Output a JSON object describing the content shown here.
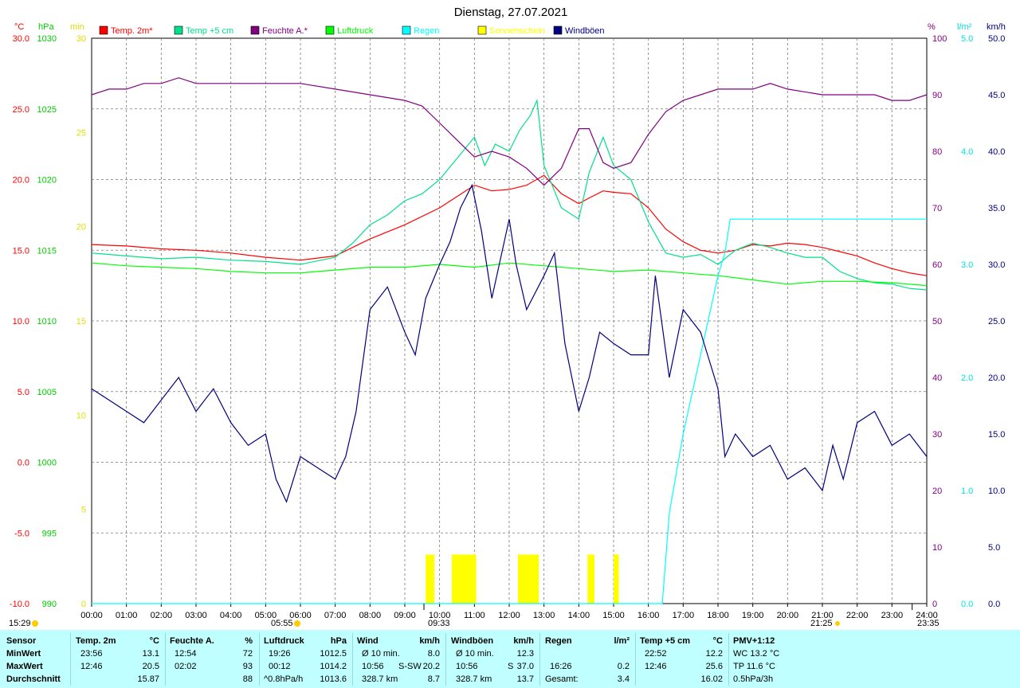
{
  "title": "Dienstag, 27.07.2021",
  "axis_units": {
    "temp": "°C",
    "pressure": "hPa",
    "sun": "min",
    "humidity": "%",
    "rain": "l/m²",
    "wind": "km/h"
  },
  "legend": [
    {
      "label": "Temp. 2m*",
      "color": "#ff0000"
    },
    {
      "label": "Temp +5 cm",
      "color": "#00e08a"
    },
    {
      "label": "Feuchte A.*",
      "color": "#800080"
    },
    {
      "label": "Luftdruck",
      "color": "#00ff00"
    },
    {
      "label": "Regen",
      "color": "#00ffff"
    },
    {
      "label": "Sonnenschein",
      "color": "#ffff00"
    },
    {
      "label": "Windböen",
      "color": "#000080"
    }
  ],
  "ticks": {
    "temp": [
      "30.0",
      "25.0",
      "20.0",
      "15.0",
      "10.0",
      "5.0",
      "0.0",
      "-5.0",
      "-10.0"
    ],
    "pressure": [
      "1030",
      "1025",
      "1020",
      "1015",
      "1010",
      "1005",
      "1000",
      "995",
      "990"
    ],
    "sun": [
      "30",
      "25",
      "20",
      "15",
      "10",
      "5",
      "0"
    ],
    "humidity": [
      "100",
      "90",
      "80",
      "70",
      "60",
      "50",
      "40",
      "30",
      "20",
      "10",
      "0"
    ],
    "rain": [
      "5.0",
      "4.0",
      "3.0",
      "2.0",
      "1.0",
      "0.0"
    ],
    "wind": [
      "50.0",
      "45.0",
      "40.0",
      "35.0",
      "30.0",
      "25.0",
      "20.0",
      "15.0",
      "10.0",
      "5.0",
      "0.0"
    ],
    "time": [
      "00:00",
      "01:00",
      "02:00",
      "03:00",
      "04:00",
      "05:00",
      "06:00",
      "07:00",
      "08:00",
      "09:00",
      "10:00",
      "11:00",
      "12:00",
      "13:00",
      "14:00",
      "15:00",
      "16:00",
      "17:00",
      "18:00",
      "19:00",
      "20:00",
      "21:00",
      "22:00",
      "23:00",
      "24:00"
    ]
  },
  "markers": {
    "current_time": "15:29",
    "sunrise": "05:55",
    "sunset": "21:25",
    "rain_start": "09:33",
    "end_time": "23:35"
  },
  "chart_data": {
    "type": "line",
    "title": "Dienstag, 27.07.2021",
    "x_range": [
      "00:00",
      "24:00"
    ],
    "axes": {
      "temp_ylim": [
        -10,
        30
      ],
      "pressure_ylim": [
        990,
        1030
      ],
      "sun_ylim": [
        0,
        30
      ],
      "humidity_ylim": [
        0,
        100
      ],
      "rain_ylim": [
        0,
        5
      ],
      "wind_ylim": [
        0,
        50
      ]
    },
    "grid": true,
    "legend_position": "top",
    "series": [
      {
        "name": "Temp. 2m*",
        "unit": "°C",
        "axis": "temp",
        "color": "#ff0000",
        "x": [
          0,
          1,
          2,
          3,
          4,
          5,
          6,
          7,
          8,
          9,
          10,
          11,
          11.5,
          12,
          12.5,
          13,
          13.5,
          14,
          14.3,
          14.7,
          15,
          15.5,
          16,
          16.5,
          17,
          17.5,
          18,
          18.5,
          19,
          19.5,
          20,
          20.5,
          21,
          21.5,
          22,
          22.5,
          23,
          23.5,
          24
        ],
        "y": [
          15.4,
          15.3,
          15.1,
          15.0,
          14.8,
          14.5,
          14.3,
          14.6,
          15.8,
          16.8,
          18.0,
          19.6,
          19.2,
          19.3,
          19.6,
          20.3,
          19.0,
          18.3,
          18.7,
          19.2,
          19.1,
          19.0,
          18.0,
          16.5,
          15.6,
          15.0,
          14.8,
          15.0,
          15.4,
          15.3,
          15.5,
          15.4,
          15.2,
          14.9,
          14.6,
          14.1,
          13.7,
          13.4,
          13.2
        ]
      },
      {
        "name": "Temp +5 cm",
        "unit": "°C",
        "axis": "temp",
        "color": "#00e08a",
        "x": [
          0,
          1,
          2,
          3,
          4,
          5,
          6,
          7,
          7.5,
          8,
          8.5,
          9,
          9.5,
          10,
          10.5,
          11,
          11.3,
          11.6,
          12,
          12.3,
          12.6,
          12.8,
          13,
          13.5,
          14,
          14.3,
          14.7,
          15,
          15.5,
          16,
          16.5,
          17,
          17.5,
          18,
          18.5,
          19,
          19.5,
          20,
          20.5,
          21,
          21.5,
          22,
          22.5,
          23,
          23.5,
          24
        ],
        "y": [
          14.8,
          14.6,
          14.4,
          14.5,
          14.3,
          14.2,
          14.0,
          14.5,
          15.5,
          16.8,
          17.5,
          18.5,
          19.0,
          20.0,
          21.5,
          23.0,
          21.0,
          22.5,
          22.0,
          23.5,
          24.5,
          25.6,
          21.0,
          18.0,
          17.2,
          20.5,
          23.0,
          21.0,
          20.0,
          17.0,
          14.8,
          14.5,
          14.7,
          14.0,
          15.0,
          15.5,
          15.2,
          14.8,
          14.5,
          14.5,
          13.5,
          13.0,
          12.7,
          12.6,
          12.3,
          12.2
        ]
      },
      {
        "name": "Feuchte A.*",
        "unit": "%",
        "axis": "humidity",
        "color": "#800080",
        "x": [
          0,
          0.5,
          1,
          1.5,
          2,
          2.5,
          3,
          4,
          5,
          6,
          7,
          8,
          9,
          9.5,
          10,
          10.5,
          11,
          11.5,
          12,
          12.5,
          13,
          13.5,
          14,
          14.3,
          14.7,
          15,
          15.5,
          16,
          16.5,
          17,
          17.5,
          18,
          18.5,
          19,
          19.5,
          20,
          21,
          22,
          22.5,
          23,
          23.5,
          24
        ],
        "y": [
          90,
          91,
          91,
          92,
          92,
          93,
          92,
          92,
          92,
          92,
          91,
          90,
          89,
          88,
          85,
          82,
          79,
          80,
          79,
          77,
          74,
          77,
          84,
          84,
          78,
          77,
          78,
          83,
          87,
          89,
          90,
          91,
          91,
          91,
          92,
          91,
          90,
          90,
          90,
          89,
          89,
          90
        ]
      },
      {
        "name": "Luftdruck",
        "unit": "hPa",
        "axis": "pressure",
        "color": "#00ff00",
        "x": [
          0,
          1,
          2,
          3,
          4,
          5,
          6,
          7,
          8,
          9,
          10,
          11,
          12,
          13,
          14,
          15,
          16,
          17,
          18,
          19,
          20,
          21,
          22,
          23,
          24
        ],
        "y": [
          1014.1,
          1013.9,
          1013.8,
          1013.7,
          1013.5,
          1013.4,
          1013.4,
          1013.6,
          1013.8,
          1013.8,
          1014.0,
          1013.8,
          1014.1,
          1013.9,
          1013.7,
          1013.5,
          1013.6,
          1013.4,
          1013.2,
          1012.9,
          1012.6,
          1012.8,
          1012.8,
          1012.7,
          1012.5
        ]
      },
      {
        "name": "Regen",
        "unit": "l/m²",
        "axis": "rain",
        "color": "#00ffff",
        "x": [
          0,
          16.4,
          16.6,
          17.0,
          17.5,
          18.0,
          18.2,
          18.35,
          19,
          20,
          21,
          22,
          23,
          24
        ],
        "y": [
          0,
          0,
          0.8,
          1.5,
          2.2,
          2.9,
          3.1,
          3.4,
          3.4,
          3.4,
          3.4,
          3.4,
          3.4,
          3.4
        ]
      },
      {
        "name": "Sonnenschein",
        "unit": "min",
        "axis": "sun",
        "color": "#ffff00",
        "intervals": [
          [
            9.6,
            9.85
          ],
          [
            10.35,
            11.05
          ],
          [
            12.25,
            12.85
          ],
          [
            14.25,
            14.45
          ],
          [
            15.0,
            15.15
          ]
        ],
        "value": 2.6
      },
      {
        "name": "Windböen",
        "unit": "km/h",
        "axis": "wind",
        "color": "#000080",
        "x": [
          0,
          0.5,
          1,
          1.5,
          2,
          2.5,
          3,
          3.5,
          4,
          4.5,
          5,
          5.3,
          5.6,
          6,
          6.5,
          7,
          7.3,
          7.6,
          8,
          8.5,
          9,
          9.3,
          9.6,
          10,
          10.3,
          10.6,
          10.93,
          11.2,
          11.5,
          12,
          12.2,
          12.5,
          13,
          13.3,
          13.6,
          14,
          14.3,
          14.6,
          15,
          15.5,
          16,
          16.2,
          16.6,
          17,
          17.5,
          18,
          18.2,
          18.5,
          19,
          19.5,
          20,
          20.5,
          21,
          21.3,
          21.6,
          22,
          22.5,
          23,
          23.5,
          24
        ],
        "y": [
          19,
          18,
          17,
          16,
          18,
          20,
          17,
          19,
          16,
          14,
          15,
          11,
          9,
          13,
          12,
          11,
          13,
          17,
          26,
          28,
          24,
          22,
          27,
          30,
          32,
          35,
          37,
          33,
          27,
          34,
          30,
          26,
          29,
          31,
          23,
          17,
          20,
          24,
          23,
          22,
          22,
          29,
          20,
          26,
          24,
          19,
          13,
          15,
          13,
          14,
          11,
          12,
          10,
          14,
          11,
          16,
          17,
          14,
          15,
          13
        ]
      }
    ]
  },
  "stats": {
    "header": {
      "sensor": "Sensor",
      "temp": "Temp. 2m",
      "temp_u": "°C",
      "feuchte": "Feuchte A.",
      "feuchte_u": "%",
      "luft": "Luftdruck",
      "luft_u": "hPa",
      "wind": "Wind",
      "wind_u": "km/h",
      "boen": "Windböen",
      "boen_u": "km/h",
      "regen": "Regen",
      "regen_u": "l/m²",
      "temp5": "Temp +5 cm",
      "temp5_u": "°C",
      "pmv": "PMV+1:12"
    },
    "rows": [
      {
        "label": "MinWert",
        "temp_t": "23:56",
        "temp_v": "13.1",
        "feuchte_t": "12:54",
        "feuchte_v": "72",
        "luft_t": "19:26",
        "luft_v": "1012.5",
        "wind_t": "Ø 10 min.",
        "wind_v": "8.0",
        "boen_t": "Ø 10 min.",
        "boen_v": "12.3",
        "regen_t": "",
        "regen_v": "",
        "temp5_t": "22:52",
        "temp5_v": "12.2",
        "pmv": "WC 13.2 °C"
      },
      {
        "label": "MaxWert",
        "temp_t": "12:46",
        "temp_v": "20.5",
        "feuchte_t": "02:02",
        "feuchte_v": "93",
        "luft_t": "00:12",
        "luft_v": "1014.2",
        "wind_t": "10:56",
        "wind_d": "S-SW",
        "wind_v": "20.2",
        "boen_t": "10:56",
        "boen_d": "S",
        "boen_v": "37.0",
        "regen_t": "16:26",
        "regen_v": "0.2",
        "temp5_t": "12:46",
        "temp5_v": "25.6",
        "pmv": "TP 11.6 °C"
      },
      {
        "label": "Durchschnitt",
        "temp_t": "",
        "temp_v": "15.87",
        "feuchte_t": "",
        "feuchte_v": "88",
        "luft_t": "^0.8hPa/h",
        "luft_v": "1013.6",
        "wind_t": "328.7 km",
        "wind_v": "8.7",
        "boen_t": "328.7 km",
        "boen_v": "13.7",
        "regen_t": "Gesamt:",
        "regen_v": "3.4",
        "temp5_t": "",
        "temp5_v": "16.02",
        "pmv": "0.5hPa/3h"
      }
    ]
  }
}
